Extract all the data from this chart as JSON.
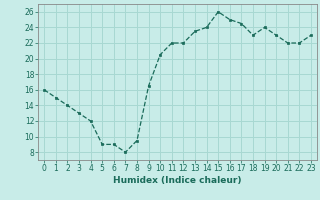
{
  "x": [
    0,
    1,
    2,
    3,
    4,
    5,
    6,
    7,
    8,
    9,
    10,
    11,
    12,
    13,
    14,
    15,
    16,
    17,
    18,
    19,
    20,
    21,
    22,
    23
  ],
  "y": [
    16,
    15,
    14,
    13,
    12,
    9,
    9,
    8,
    9.5,
    16.5,
    20.5,
    22,
    22,
    23.5,
    24,
    26,
    25,
    24.5,
    23,
    24,
    23,
    22,
    22,
    23
  ],
  "line_color": "#1a6b5a",
  "marker_color": "#1a6b5a",
  "bg_color": "#c8ece8",
  "grid_color": "#a8d8d2",
  "xlabel": "Humidex (Indice chaleur)",
  "ylim": [
    7,
    27
  ],
  "xlim": [
    -0.5,
    23.5
  ],
  "yticks": [
    8,
    10,
    12,
    14,
    16,
    18,
    20,
    22,
    24,
    26
  ],
  "xticks": [
    0,
    1,
    2,
    3,
    4,
    5,
    6,
    7,
    8,
    9,
    10,
    11,
    12,
    13,
    14,
    15,
    16,
    17,
    18,
    19,
    20,
    21,
    22,
    23
  ],
  "label_color": "#1a6b5a",
  "tick_color": "#1a6b5a",
  "spine_color": "#888888",
  "font_size_axis": 6.5,
  "font_size_ticks": 5.5
}
